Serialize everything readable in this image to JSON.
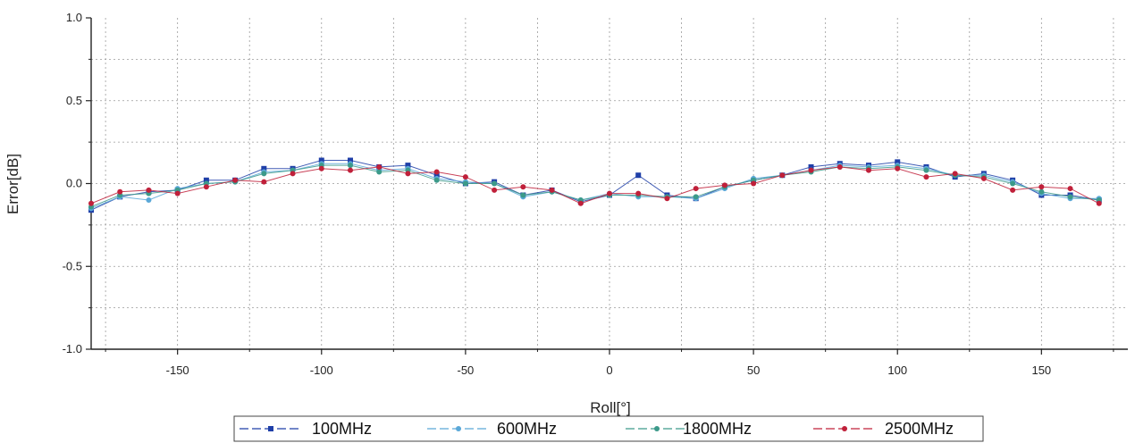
{
  "chart_data": {
    "type": "line",
    "xlabel": "Roll[°]",
    "ylabel": "Error[dB]",
    "xlim": [
      -180,
      180
    ],
    "ylim": [
      -1.0,
      1.0
    ],
    "x_ticks": [
      -150,
      -100,
      -50,
      0,
      50,
      100,
      150
    ],
    "x_tick_labels": [
      "-150",
      "-100",
      "-50",
      "0",
      "50",
      "100",
      "150"
    ],
    "y_ticks": [
      -1.0,
      -0.5,
      0.0,
      0.5,
      1.0
    ],
    "y_tick_labels": [
      "-1.0",
      "-0.5",
      "0.0",
      "0.5",
      "1.0"
    ],
    "grid": true,
    "legend_position": "bottom",
    "x": [
      -180,
      -170,
      -160,
      -150,
      -140,
      -130,
      -120,
      -110,
      -100,
      -90,
      -80,
      -70,
      -60,
      -50,
      -40,
      -30,
      -20,
      -10,
      0,
      10,
      20,
      30,
      40,
      50,
      60,
      70,
      80,
      90,
      100,
      110,
      120,
      130,
      140,
      150,
      160,
      170
    ],
    "series": [
      {
        "name": "100MHz",
        "color": "#1f3fa8",
        "marker": "square",
        "values": [
          -0.16,
          -0.08,
          -0.05,
          -0.04,
          0.02,
          0.02,
          0.09,
          0.09,
          0.14,
          0.14,
          0.1,
          0.11,
          0.05,
          0.0,
          0.01,
          -0.07,
          -0.04,
          -0.11,
          -0.07,
          0.05,
          -0.07,
          -0.09,
          -0.02,
          0.02,
          0.05,
          0.1,
          0.12,
          0.11,
          0.13,
          0.1,
          0.04,
          0.06,
          0.02,
          -0.07,
          -0.07,
          -0.1
        ]
      },
      {
        "name": "600MHz",
        "color": "#5aa8d8",
        "marker": "circle",
        "values": [
          -0.15,
          -0.08,
          -0.1,
          -0.03,
          0.0,
          0.01,
          0.07,
          0.08,
          0.12,
          0.12,
          0.08,
          0.09,
          0.03,
          0.01,
          0.0,
          -0.08,
          -0.05,
          -0.1,
          -0.06,
          -0.08,
          -0.08,
          -0.09,
          -0.03,
          0.03,
          0.05,
          0.08,
          0.11,
          0.1,
          0.11,
          0.09,
          0.05,
          0.05,
          0.01,
          -0.06,
          -0.09,
          -0.09
        ]
      },
      {
        "name": "1800MHz",
        "color": "#3c9a8a",
        "marker": "circle",
        "values": [
          -0.14,
          -0.07,
          -0.06,
          -0.04,
          0.0,
          0.01,
          0.06,
          0.08,
          0.11,
          0.11,
          0.07,
          0.08,
          0.02,
          0.0,
          0.0,
          -0.07,
          -0.05,
          -0.1,
          -0.07,
          -0.07,
          -0.08,
          -0.08,
          -0.02,
          0.02,
          0.05,
          0.07,
          0.1,
          0.09,
          0.1,
          0.08,
          0.05,
          0.04,
          0.0,
          -0.05,
          -0.08,
          -0.1
        ]
      },
      {
        "name": "2500MHz",
        "color": "#c0203a",
        "marker": "circle",
        "values": [
          -0.12,
          -0.05,
          -0.04,
          -0.06,
          -0.02,
          0.02,
          0.01,
          0.06,
          0.09,
          0.08,
          0.1,
          0.06,
          0.07,
          0.04,
          -0.04,
          -0.02,
          -0.04,
          -0.12,
          -0.06,
          -0.06,
          -0.09,
          -0.03,
          -0.01,
          0.0,
          0.05,
          0.08,
          0.1,
          0.08,
          0.09,
          0.04,
          0.06,
          0.03,
          -0.04,
          -0.02,
          -0.03,
          -0.12
        ]
      }
    ]
  }
}
